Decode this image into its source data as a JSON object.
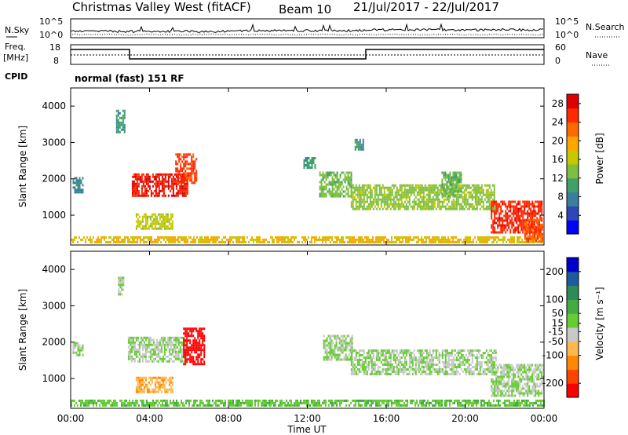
{
  "header": {
    "title": "Christmas Valley West (fitACF)",
    "beam": "Beam 10",
    "date_range": "21/Jul/2017 - 22/Jul/2017"
  },
  "status_panel": {
    "nsky_label": "N.Sky",
    "nsky_ticks": [
      "10^5",
      "10^0"
    ],
    "nsearch_label": "N.Search",
    "nsearch_ticks": [
      "10^5",
      "10^0"
    ],
    "freq_label_1": "Freq.",
    "freq_label_2": "[MHz]",
    "freq_ticks": [
      "18",
      "8"
    ],
    "nave_label": "Nave",
    "nave_ticks": [
      "60",
      "0"
    ],
    "cpid_label": "CPID",
    "cpid_value": "normal (fast) 151 RF"
  },
  "colors": {
    "power": [
      "#0000ff",
      "#2b47b8",
      "#3a7fa0",
      "#3fa068",
      "#7fbf3f",
      "#c8c800",
      "#ffa500",
      "#ff6a00",
      "#ff2a00",
      "#e00000"
    ],
    "velocity": [
      "#ff0000",
      "#ff4400",
      "#ff8800",
      "#ffb84d",
      "#c8c8c8",
      "#66cc33",
      "#44aa44",
      "#2e8b57",
      "#1f5a9f",
      "#0000cc"
    ],
    "ground_scatter": "#bebebe"
  },
  "chart_data": [
    {
      "type": "heatmap",
      "name": "power",
      "xlabel": "Time UT",
      "ylabel": "Slant Range [km]",
      "x_ticks": [
        "00:00",
        "04:00",
        "08:00",
        "12:00",
        "16:00",
        "20:00",
        "00:00"
      ],
      "xlim_hours": [
        0,
        24
      ],
      "ylim": [
        180,
        4500
      ],
      "y_ticks": [
        1000,
        2000,
        3000,
        4000
      ],
      "colorbar": {
        "label": "Power [dB]",
        "ticks": [
          4,
          8,
          12,
          16,
          20,
          24,
          28
        ],
        "range": [
          0,
          30
        ]
      },
      "regions": [
        {
          "t": [
            3.1,
            5.9
          ],
          "r": [
            1550,
            2150
          ],
          "value": 27
        },
        {
          "t": [
            5.3,
            6.4
          ],
          "r": [
            1900,
            2700
          ],
          "value": 25
        },
        {
          "t": [
            3.3,
            5.2
          ],
          "r": [
            650,
            1050
          ],
          "value": 16
        },
        {
          "t": [
            0.1,
            0.6
          ],
          "r": [
            1650,
            2050
          ],
          "value": 8
        },
        {
          "t": [
            2.3,
            2.7
          ],
          "r": [
            3300,
            3900
          ],
          "value": 10
        },
        {
          "t": [
            0,
            24
          ],
          "r": [
            250,
            420
          ],
          "value": 18
        },
        {
          "t": [
            12.6,
            14.2
          ],
          "r": [
            1500,
            2200
          ],
          "value": 13
        },
        {
          "t": [
            14.2,
            21.5
          ],
          "r": [
            1150,
            1850
          ],
          "value": 14
        },
        {
          "t": [
            18.8,
            19.8
          ],
          "r": [
            1500,
            2200
          ],
          "value": 12
        },
        {
          "t": [
            21.3,
            23.9
          ],
          "r": [
            550,
            1400
          ],
          "value": 26
        },
        {
          "t": [
            23.0,
            23.9
          ],
          "r": [
            300,
            900
          ],
          "value": 24
        },
        {
          "t": [
            11.8,
            12.4
          ],
          "r": [
            2300,
            2600
          ],
          "value": 10
        },
        {
          "t": [
            14.4,
            14.8
          ],
          "r": [
            2800,
            3100
          ],
          "value": 9
        }
      ]
    },
    {
      "type": "heatmap",
      "name": "velocity",
      "xlabel": "Time UT",
      "ylabel": "Slant Range [km]",
      "x_ticks": [
        "00:00",
        "04:00",
        "08:00",
        "12:00",
        "16:00",
        "20:00",
        "00:00"
      ],
      "xlim_hours": [
        0,
        24
      ],
      "ylim": [
        180,
        4500
      ],
      "y_ticks": [
        1000,
        2000,
        3000,
        4000
      ],
      "colorbar": {
        "label": "Velocity [m s⁻¹]",
        "ticks": [
          200,
          100,
          50,
          15,
          -15,
          -50,
          -100,
          -200
        ],
        "range": [
          -250,
          250
        ]
      },
      "regions": [
        {
          "t": [
            2.9,
            5.9
          ],
          "r": [
            1500,
            2150
          ],
          "value": 0
        },
        {
          "t": [
            5.7,
            6.8
          ],
          "r": [
            1400,
            2400
          ],
          "value": -240
        },
        {
          "t": [
            3.3,
            5.2
          ],
          "r": [
            650,
            1050
          ],
          "value": -90
        },
        {
          "t": [
            0,
            24
          ],
          "r": [
            250,
            420
          ],
          "value": 40
        },
        {
          "t": [
            12.8,
            14.3
          ],
          "r": [
            1500,
            2200
          ],
          "value": 0
        },
        {
          "t": [
            14.2,
            21.6
          ],
          "r": [
            1100,
            1800
          ],
          "value": 0
        },
        {
          "t": [
            21.3,
            24.0
          ],
          "r": [
            550,
            1400
          ],
          "value": 0
        },
        {
          "t": [
            0.1,
            0.6
          ],
          "r": [
            1650,
            2000
          ],
          "value": 0
        },
        {
          "t": [
            2.4,
            2.7
          ],
          "r": [
            3300,
            3800
          ],
          "value": 0
        }
      ]
    }
  ]
}
